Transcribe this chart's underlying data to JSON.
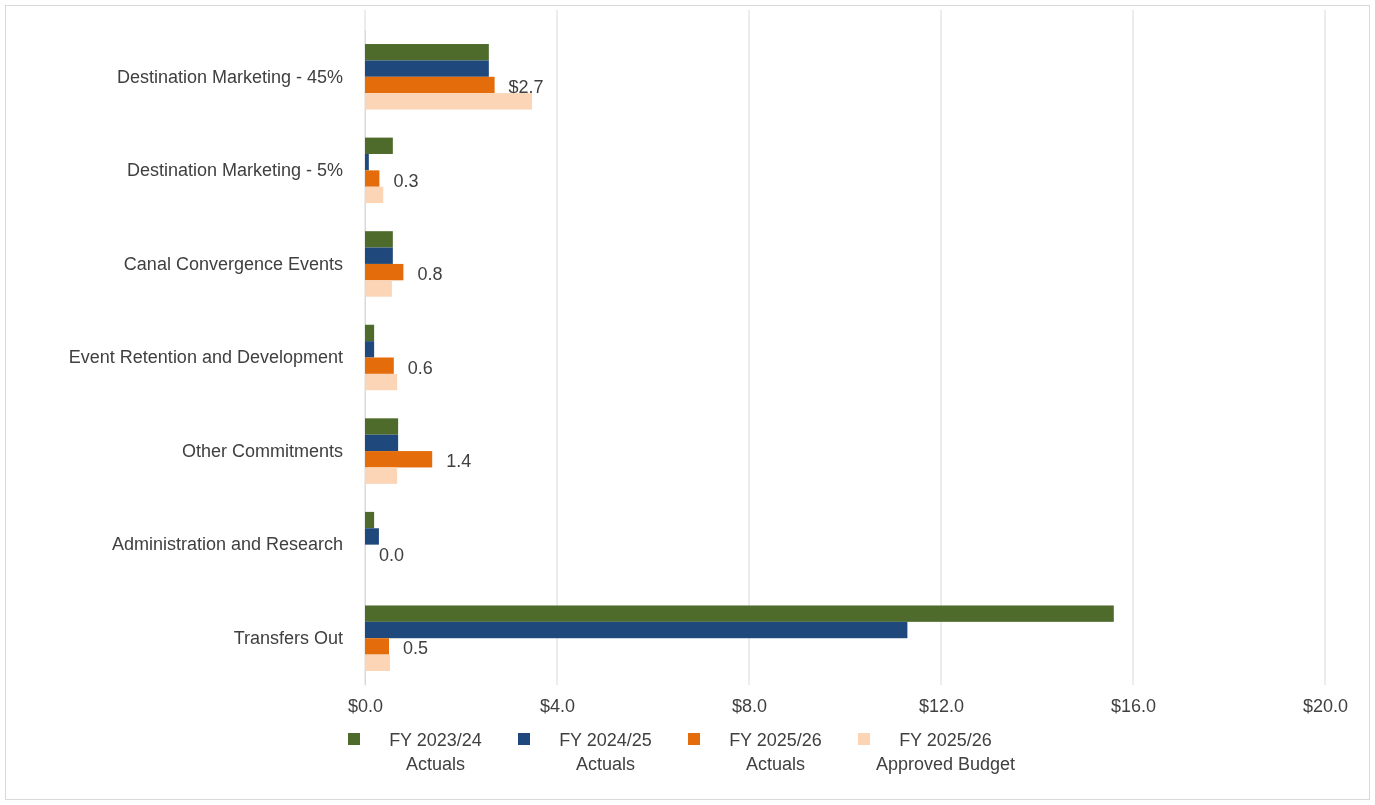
{
  "chart_data": {
    "type": "bar",
    "orientation": "horizontal",
    "categories": [
      "Destination Marketing - 45%",
      "Destination Marketing - 5%",
      "Canal Convergence Events",
      "Event Retention and Development",
      "Other Commitments",
      "Administration and Research",
      "Transfers Out"
    ],
    "series": [
      {
        "name": "FY 2023/24 Actuals",
        "color": "#4e6b2c",
        "values": [
          2.58,
          0.58,
          0.58,
          0.19,
          0.69,
          0.19,
          15.6
        ]
      },
      {
        "name": "FY 2024/25 Actuals",
        "color": "#1f497d",
        "values": [
          2.58,
          0.08,
          0.58,
          0.19,
          0.69,
          0.29,
          11.3
        ]
      },
      {
        "name": "FY 2025/26 Actuals",
        "color": "#e46c0a",
        "values": [
          2.7,
          0.3,
          0.8,
          0.6,
          1.4,
          0.0,
          0.5
        ],
        "value_labels": [
          "$2.7",
          "0.3",
          "0.8",
          "0.6",
          "1.4",
          "0.0",
          "0.5"
        ]
      },
      {
        "name": "FY 2025/26 Approved Budget",
        "color": "#fbd5b5",
        "values": [
          3.48,
          0.38,
          0.56,
          0.67,
          0.67,
          null,
          0.52
        ]
      }
    ],
    "xlim": [
      0,
      20
    ],
    "xticks": [
      {
        "value": 0,
        "label": "$0.0"
      },
      {
        "value": 4,
        "label": "$4.0"
      },
      {
        "value": 8,
        "label": "$8.0"
      },
      {
        "value": 12,
        "label": "$12.0"
      },
      {
        "value": 16,
        "label": "$16.0"
      },
      {
        "value": 20,
        "label": "$20.0"
      }
    ],
    "grid": "x",
    "legend": "bottom"
  }
}
